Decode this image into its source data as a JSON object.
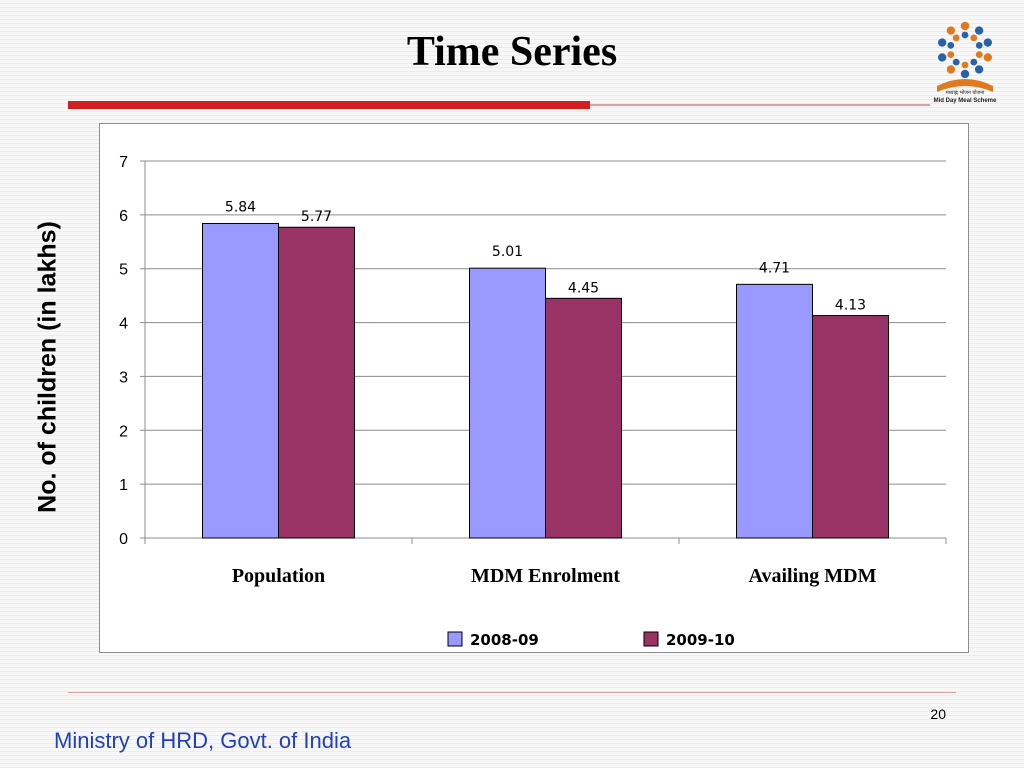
{
  "slide": {
    "title": "Time Series",
    "page_number": "20",
    "footer": "Ministry of HRD, Govt. of India",
    "logo": {
      "icon": "mid-day-meal-logo",
      "text_hindi": "मध्याह्न भोजन योजना",
      "text_english": "Mid Day Meal Scheme"
    }
  },
  "chart_data": {
    "type": "bar",
    "title": "",
    "xlabel": "",
    "ylabel": "No. of children (in lakhs)",
    "categories": [
      "Population",
      "MDM Enrolment",
      "Availing MDM"
    ],
    "series": [
      {
        "name": "2008-09",
        "values": [
          5.84,
          5.01,
          4.71
        ],
        "labels": [
          "5.84",
          "5.01",
          "4.71"
        ],
        "color": "#9999ff"
      },
      {
        "name": "2009-10",
        "values": [
          5.77,
          4.45,
          4.13
        ],
        "labels": [
          "5.77",
          "4.45",
          "4.13"
        ],
        "color": "#993366"
      }
    ],
    "ylim": [
      0,
      7
    ],
    "yticks": [
      "0",
      "1",
      "2",
      "3",
      "4",
      "5",
      "6",
      "7"
    ],
    "grid": true,
    "legend": "bottom"
  }
}
